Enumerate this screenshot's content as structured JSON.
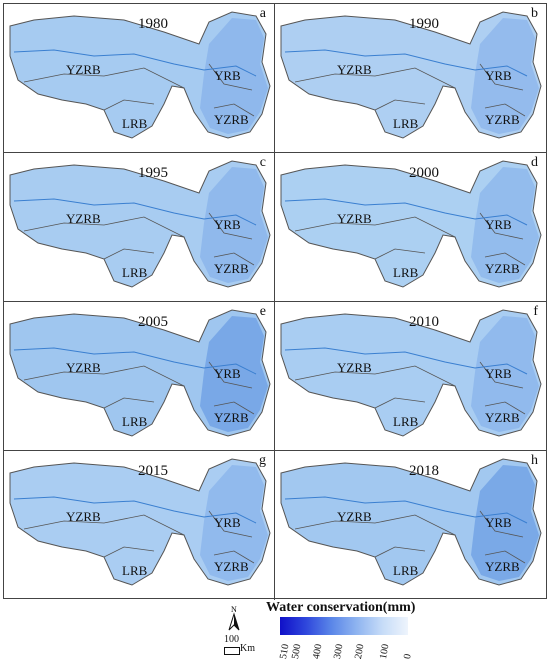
{
  "panels": [
    {
      "year": "1980",
      "letter": "a",
      "shade": "#a6cbf1"
    },
    {
      "year": "1990",
      "letter": "b",
      "shade": "#aecff2"
    },
    {
      "year": "1995",
      "letter": "c",
      "shade": "#a8ccf1"
    },
    {
      "year": "2000",
      "letter": "d",
      "shade": "#acd0f2"
    },
    {
      "year": "2005",
      "letter": "e",
      "shade": "#9fc6ef"
    },
    {
      "year": "2010",
      "letter": "f",
      "shade": "#a9cdf2"
    },
    {
      "year": "2015",
      "letter": "g",
      "shade": "#aacdf2"
    },
    {
      "year": "2018",
      "letter": "h",
      "shade": "#a2c8f0"
    }
  ],
  "region_labels": {
    "yzrb": "YZRB",
    "yrb": "YRB",
    "lrb": "LRB",
    "yzrb_east": "YZRB"
  },
  "legend": {
    "title": "Water conservation(mm)",
    "ticks": [
      "510",
      "500",
      "400",
      "300",
      "200",
      "100",
      "0"
    ],
    "ramp_colors": [
      "#1010c8",
      "#5a86e8",
      "#eef4fc"
    ]
  },
  "north_label": "N",
  "scale": {
    "value": "100",
    "unit": "Km"
  },
  "colors": {
    "outline": "#555555",
    "river": "#3a7fd0",
    "east_dark": "#5a8fe0"
  }
}
